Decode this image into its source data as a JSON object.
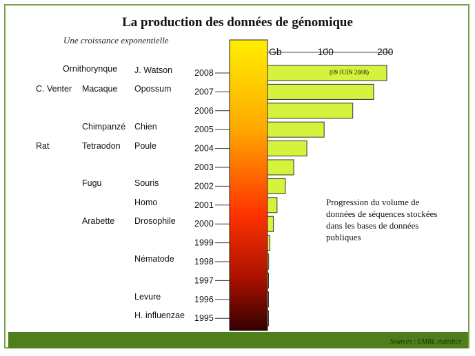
{
  "page": {
    "title": "La production des données de génomique",
    "subtitle": "Une croissance exponentielle",
    "annotation": "Progression du volume de données de séquences stockées dans les bases de données publiques",
    "source": "Sources : EMBL statistics"
  },
  "colors": {
    "bar_fill": "#d7f23c",
    "bar_stroke": "#333333",
    "footer": "#4e7f1b",
    "gradient_top": "#ffee00",
    "gradient_mid": "#ff3300",
    "gradient_bottom": "#330000"
  },
  "organisms": [
    {
      "year": "2008",
      "col1": "",
      "col2": "Ornithorynque",
      "col3": "J. Watson"
    },
    {
      "year": "2007",
      "col1": "C. Venter",
      "col2": "Macaque",
      "col3": "Opossum"
    },
    {
      "year": "2006",
      "col1": "",
      "col2": "",
      "col3": ""
    },
    {
      "year": "2005",
      "col1": "",
      "col2": "Chimpanzé",
      "col3": "Chien"
    },
    {
      "year": "2004",
      "col1": "Rat",
      "col2": "Tetraodon",
      "col3": "Poule"
    },
    {
      "year": "2003",
      "col1": "",
      "col2": "",
      "col3": ""
    },
    {
      "year": "2002",
      "col1": "",
      "col2": "Fugu",
      "col3": "Souris"
    },
    {
      "year": "2001",
      "col1": "",
      "col2": "",
      "col3": "Homo"
    },
    {
      "year": "2000",
      "col1": "",
      "col2": "Arabette",
      "col3": "Drosophile"
    },
    {
      "year": "1999",
      "col1": "",
      "col2": "",
      "col3": ""
    },
    {
      "year": "1998",
      "col1": "",
      "col2": "",
      "col3": "Nématode"
    },
    {
      "year": "1997",
      "col1": "",
      "col2": "",
      "col3": ""
    },
    {
      "year": "1996",
      "col1": "",
      "col2": "",
      "col3": "Levure"
    },
    {
      "year": "1995",
      "col1": "",
      "col2": "",
      "col3": "H. influenzae"
    }
  ],
  "chart_data": {
    "type": "bar",
    "orientation": "horizontal",
    "title": "La production des données de génomique",
    "subtitle": "Une croissance exponentielle",
    "unit_label": "Gb",
    "xlim": [
      0,
      200
    ],
    "xticks": [
      0,
      100,
      200
    ],
    "xtick_labels": [
      "Gb",
      "100",
      "200"
    ],
    "categories": [
      "2008",
      "2007",
      "2006",
      "2005",
      "2004",
      "2003",
      "2002",
      "2001",
      "2000",
      "1999",
      "1998",
      "1997",
      "1996",
      "1995"
    ],
    "values": [
      200,
      178,
      143,
      95,
      66,
      44,
      30,
      16,
      10,
      4,
      2,
      1.5,
      1,
      0.5
    ],
    "annotations": [
      {
        "category": "2008",
        "text": "(09 JUIN 2008)"
      }
    ],
    "grid": false
  }
}
